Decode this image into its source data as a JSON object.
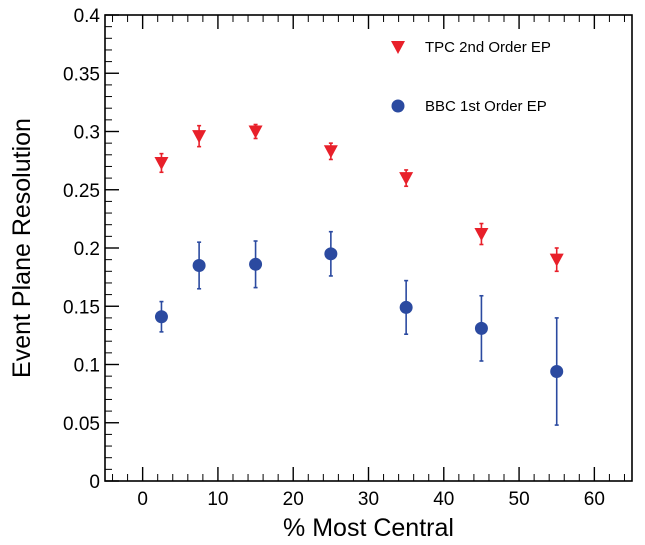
{
  "chart_data": {
    "type": "scatter",
    "xlabel": "% Most Central",
    "ylabel": "Event Plane Resolution",
    "xlim": [
      -5,
      65
    ],
    "ylim": [
      0,
      0.4
    ],
    "x_ticks": [
      0,
      10,
      20,
      30,
      40,
      50,
      60
    ],
    "x_tick_labels": [
      "0",
      "10",
      "20",
      "30",
      "40",
      "50",
      "60"
    ],
    "y_ticks": [
      0,
      0.05,
      0.1,
      0.15,
      0.2,
      0.25,
      0.3,
      0.35,
      0.4
    ],
    "y_tick_labels": [
      "0",
      "0.05",
      "0.1",
      "0.15",
      "0.2",
      "0.25",
      "0.3",
      "0.35",
      "0.4"
    ],
    "grid": false,
    "legend_position": "top-right",
    "series": [
      {
        "name": "TPC 2nd Order EP",
        "marker": "triangle-down",
        "color": "#e8202a",
        "points": [
          {
            "x": 2.5,
            "y": 0.273,
            "err": 0.008
          },
          {
            "x": 7.5,
            "y": 0.296,
            "err": 0.009
          },
          {
            "x": 15,
            "y": 0.3,
            "err": 0.006
          },
          {
            "x": 25,
            "y": 0.283,
            "err": 0.007
          },
          {
            "x": 35,
            "y": 0.26,
            "err": 0.007
          },
          {
            "x": 45,
            "y": 0.212,
            "err": 0.009
          },
          {
            "x": 55,
            "y": 0.19,
            "err": 0.01
          }
        ]
      },
      {
        "name": "BBC 1st Order EP",
        "marker": "circle",
        "color": "#2b4aa0",
        "points": [
          {
            "x": 2.5,
            "y": 0.141,
            "err": 0.013
          },
          {
            "x": 7.5,
            "y": 0.185,
            "err": 0.02
          },
          {
            "x": 15,
            "y": 0.186,
            "err": 0.02
          },
          {
            "x": 25,
            "y": 0.195,
            "err": 0.019
          },
          {
            "x": 35,
            "y": 0.149,
            "err": 0.023
          },
          {
            "x": 45,
            "y": 0.131,
            "err": 0.028
          },
          {
            "x": 55,
            "y": 0.094,
            "err": 0.046
          }
        ]
      }
    ]
  }
}
